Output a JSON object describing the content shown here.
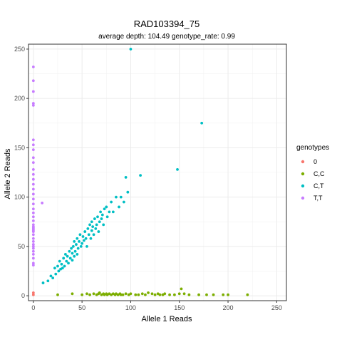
{
  "chart_data": {
    "type": "scatter",
    "title": "RAD103394_75",
    "subtitle": "average depth:  104.49  genotype_rate:  0.99",
    "xlabel": "Allele 1 Reads",
    "ylabel": "Allele 2 Reads",
    "xlim": [
      -5,
      260
    ],
    "ylim": [
      -5,
      255
    ],
    "xticks": [
      0,
      50,
      100,
      150,
      200,
      250
    ],
    "yticks": [
      0,
      50,
      100,
      150,
      200,
      250
    ],
    "grid": true,
    "legend": {
      "title": "genotypes",
      "placement": "right"
    },
    "series": [
      {
        "name": "0",
        "color": "#F8766D",
        "x": [
          0,
          0
        ],
        "y": [
          1,
          3
        ]
      },
      {
        "name": "C,C",
        "color": "#7CAE00",
        "x": [
          25,
          40,
          50,
          55,
          58,
          62,
          65,
          67,
          68,
          70,
          72,
          73,
          75,
          76,
          78,
          80,
          82,
          84,
          85,
          87,
          89,
          90,
          92,
          95,
          98,
          100,
          105,
          108,
          112,
          115,
          118,
          122,
          125,
          128,
          130,
          133,
          135,
          140,
          145,
          150,
          152,
          155,
          160,
          170,
          178,
          185,
          195,
          200,
          220
        ],
        "y": [
          1,
          2,
          1,
          2,
          1,
          2,
          1,
          2,
          3,
          1,
          2,
          1,
          2,
          1,
          2,
          1,
          2,
          1,
          2,
          1,
          2,
          1,
          1,
          2,
          1,
          2,
          1,
          1,
          2,
          1,
          3,
          2,
          1,
          2,
          1,
          1,
          2,
          1,
          1,
          2,
          7,
          2,
          1,
          1,
          1,
          1,
          1,
          1,
          1
        ]
      },
      {
        "name": "C,T",
        "color": "#00BFC4",
        "x": [
          10,
          15,
          18,
          20,
          22,
          23,
          25,
          26,
          27,
          28,
          29,
          30,
          31,
          32,
          33,
          34,
          35,
          36,
          37,
          38,
          39,
          40,
          40,
          41,
          42,
          42,
          43,
          44,
          45,
          45,
          46,
          47,
          48,
          49,
          50,
          51,
          52,
          53,
          54,
          55,
          56,
          57,
          58,
          59,
          60,
          60,
          61,
          62,
          63,
          64,
          65,
          66,
          67,
          68,
          69,
          70,
          71,
          72,
          73,
          75,
          76,
          78,
          80,
          82,
          85,
          88,
          90,
          93,
          95,
          97,
          100,
          110,
          148,
          173
        ],
        "y": [
          13,
          15,
          20,
          18,
          28,
          22,
          30,
          25,
          35,
          27,
          32,
          28,
          38,
          30,
          42,
          35,
          40,
          33,
          45,
          38,
          48,
          36,
          43,
          50,
          40,
          55,
          45,
          52,
          42,
          58,
          48,
          55,
          62,
          50,
          53,
          60,
          56,
          65,
          58,
          50,
          68,
          62,
          72,
          58,
          66,
          75,
          70,
          62,
          78,
          68,
          72,
          80,
          65,
          75,
          85,
          78,
          82,
          72,
          88,
          90,
          80,
          85,
          95,
          85,
          100,
          90,
          100,
          95,
          120,
          105,
          250,
          122,
          128,
          175
        ]
      },
      {
        "name": "T,T",
        "color": "#C77CFF",
        "x": [
          0,
          0,
          0,
          0,
          0,
          0,
          0,
          0,
          0,
          0,
          0,
          0,
          0,
          0,
          0,
          0,
          0,
          0,
          0,
          0,
          0,
          0,
          0,
          0,
          0,
          0,
          0,
          0,
          0,
          0,
          0,
          0,
          0,
          0,
          0,
          0,
          0,
          0,
          0,
          0,
          9
        ],
        "y": [
          232,
          218,
          207,
          195,
          193,
          158,
          153,
          148,
          140,
          135,
          128,
          123,
          118,
          113,
          108,
          103,
          98,
          93,
          88,
          84,
          80,
          76,
          72,
          70,
          69,
          68,
          67,
          66,
          65,
          62,
          58,
          55,
          52,
          50,
          48,
          45,
          42,
          38,
          33,
          31,
          94
        ]
      }
    ]
  }
}
